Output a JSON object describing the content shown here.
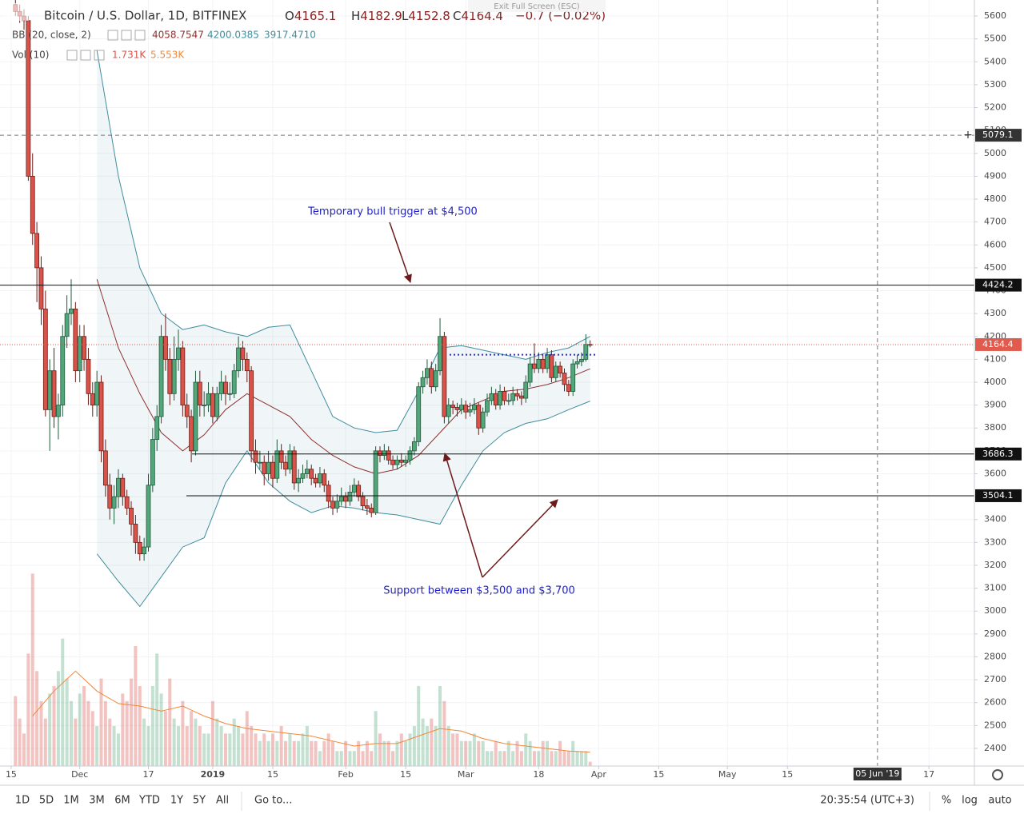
{
  "header": {
    "title": "Bitcoin / U.S. Dollar, 1D, BITFINEX",
    "ohlc": [
      {
        "label": "O",
        "value": 4165.1
      },
      {
        "label": "H",
        "value": 4182.9
      },
      {
        "label": "L",
        "value": 4152.8
      },
      {
        "label": "C",
        "value": 4164.4
      }
    ],
    "change": "−0.7 (−0.02%)",
    "indicators": [
      {
        "name": "BB (20, close, 2)",
        "values": [
          "4058.7547",
          "4200.0385",
          "3917.4710"
        ]
      },
      {
        "name": "Vol (10)",
        "values": [
          "1.731K",
          "5.553K"
        ]
      }
    ],
    "exit_fullscreen": "Exit Full Screen (ESC)"
  },
  "chart_data": {
    "type": "candlestick",
    "xlim": [
      -2.6,
      224.6
    ],
    "xticks": [
      {
        "value": 0,
        "label": "15"
      },
      {
        "value": 16,
        "label": "Dec"
      },
      {
        "value": 32,
        "label": "17"
      },
      {
        "value": 47,
        "label": "2019"
      },
      {
        "value": 61,
        "label": "15"
      },
      {
        "value": 78,
        "label": "Feb"
      },
      {
        "value": 92,
        "label": "15"
      },
      {
        "value": 106,
        "label": "Mar"
      },
      {
        "value": 123,
        "label": "18"
      },
      {
        "value": 137,
        "label": "Apr"
      },
      {
        "value": 151,
        "label": "15"
      },
      {
        "value": 167,
        "label": "May"
      },
      {
        "value": 181,
        "label": "15"
      },
      {
        "value": 214,
        "label": "17"
      }
    ],
    "ylim": [
      2323,
      5670
    ],
    "yticks": [
      2400,
      2500,
      2600,
      2700,
      2800,
      2900,
      3000,
      3100,
      3200,
      3300,
      3400,
      3500,
      3600,
      3700,
      3800,
      3900,
      4000,
      4100,
      4200,
      4300,
      4400,
      4500,
      4600,
      4700,
      4800,
      4900,
      5000,
      5100,
      5200,
      5300,
      5400,
      5500,
      5600
    ],
    "grid": true,
    "up_color": "#53a57a",
    "down_color": "#d9534a",
    "x": [
      1,
      2,
      3,
      4,
      5,
      6,
      7,
      8,
      9,
      10,
      11,
      12,
      13,
      14,
      15,
      16,
      17,
      18,
      19,
      20,
      21,
      22,
      23,
      24,
      25,
      26,
      27,
      28,
      29,
      30,
      31,
      32,
      33,
      34,
      35,
      36,
      37,
      38,
      39,
      40,
      41,
      42,
      43,
      44,
      45,
      46,
      47,
      48,
      49,
      50,
      51,
      52,
      53,
      54,
      55,
      56,
      57,
      58,
      59,
      60,
      61,
      62,
      63,
      64,
      65,
      66,
      67,
      68,
      69,
      70,
      71,
      72,
      73,
      74,
      75,
      76,
      77,
      78,
      79,
      80,
      81,
      82,
      83,
      84,
      85,
      86,
      87,
      88,
      89,
      90,
      91,
      92,
      93,
      94,
      95,
      96,
      97,
      98,
      99,
      100,
      101,
      102,
      103,
      104,
      105,
      106,
      107,
      108,
      109,
      110,
      111,
      112,
      113,
      114,
      115,
      116,
      117,
      118,
      119,
      120,
      121,
      122,
      123,
      124,
      125,
      126,
      127,
      128,
      129,
      130,
      131,
      132,
      133,
      134,
      135
    ],
    "candles": [
      [
        5650,
        5680,
        5600,
        5620
      ],
      [
        5620,
        5650,
        5570,
        5600
      ],
      [
        5600,
        5630,
        5540,
        5580
      ],
      [
        5580,
        5600,
        4880,
        4900
      ],
      [
        4900,
        5000,
        4600,
        4650
      ],
      [
        4650,
        4700,
        4350,
        4500
      ],
      [
        4500,
        4550,
        4250,
        4320
      ],
      [
        4320,
        4400,
        3850,
        3880
      ],
      [
        3880,
        4100,
        3700,
        4050
      ],
      [
        4050,
        4150,
        3800,
        3850
      ],
      [
        3850,
        3950,
        3750,
        3900
      ],
      [
        3900,
        4250,
        3850,
        4200
      ],
      [
        4200,
        4380,
        4150,
        4300
      ],
      [
        4300,
        4450,
        4250,
        4320
      ],
      [
        4320,
        4350,
        4000,
        4050
      ],
      [
        4050,
        4250,
        4000,
        4200
      ],
      [
        4200,
        4250,
        4050,
        4100
      ],
      [
        4100,
        4150,
        3900,
        3950
      ],
      [
        3950,
        4000,
        3850,
        3900
      ],
      [
        3900,
        4050,
        3850,
        4000
      ],
      [
        4000,
        4030,
        3650,
        3700
      ],
      [
        3700,
        3750,
        3500,
        3550
      ],
      [
        3550,
        3600,
        3400,
        3450
      ],
      [
        3450,
        3550,
        3380,
        3500
      ],
      [
        3500,
        3620,
        3450,
        3580
      ],
      [
        3580,
        3600,
        3460,
        3500
      ],
      [
        3500,
        3530,
        3420,
        3450
      ],
      [
        3450,
        3480,
        3330,
        3380
      ],
      [
        3380,
        3420,
        3250,
        3300
      ],
      [
        3300,
        3330,
        3220,
        3250
      ],
      [
        3250,
        3320,
        3220,
        3280
      ],
      [
        3280,
        3600,
        3260,
        3550
      ],
      [
        3550,
        3800,
        3520,
        3750
      ],
      [
        3750,
        3900,
        3700,
        3850
      ],
      [
        3850,
        4250,
        3820,
        4200
      ],
      [
        4200,
        4300,
        4050,
        4100
      ],
      [
        4100,
        4150,
        3900,
        3950
      ],
      [
        3950,
        4200,
        3920,
        4100
      ],
      [
        4100,
        4230,
        4050,
        4150
      ],
      [
        4150,
        4180,
        3850,
        3900
      ],
      [
        3900,
        3950,
        3800,
        3850
      ],
      [
        3850,
        3880,
        3650,
        3700
      ],
      [
        3700,
        4050,
        3680,
        4000
      ],
      [
        4000,
        4050,
        3850,
        3900
      ],
      [
        3900,
        3960,
        3850,
        3900
      ],
      [
        3900,
        4000,
        3870,
        3950
      ],
      [
        3950,
        3980,
        3820,
        3850
      ],
      [
        3850,
        3980,
        3830,
        3950
      ],
      [
        3950,
        4050,
        3920,
        4000
      ],
      [
        4000,
        4030,
        3900,
        3950
      ],
      [
        3950,
        4000,
        3920,
        3950
      ],
      [
        3950,
        4080,
        3930,
        4050
      ],
      [
        4050,
        4200,
        4020,
        4150
      ],
      [
        4150,
        4180,
        4050,
        4100
      ],
      [
        4100,
        4130,
        4000,
        4050
      ],
      [
        4050,
        4070,
        3650,
        3700
      ],
      [
        3700,
        3750,
        3600,
        3650
      ],
      [
        3650,
        3700,
        3620,
        3650
      ],
      [
        3650,
        3680,
        3550,
        3600
      ],
      [
        3600,
        3700,
        3570,
        3650
      ],
      [
        3650,
        3680,
        3540,
        3580
      ],
      [
        3580,
        3750,
        3560,
        3700
      ],
      [
        3700,
        3730,
        3620,
        3650
      ],
      [
        3650,
        3680,
        3590,
        3620
      ],
      [
        3620,
        3730,
        3600,
        3700
      ],
      [
        3700,
        3720,
        3530,
        3560
      ],
      [
        3560,
        3620,
        3520,
        3580
      ],
      [
        3580,
        3640,
        3560,
        3600
      ],
      [
        3600,
        3660,
        3580,
        3620
      ],
      [
        3620,
        3640,
        3550,
        3580
      ],
      [
        3580,
        3600,
        3540,
        3560
      ],
      [
        3560,
        3630,
        3540,
        3600
      ],
      [
        3600,
        3620,
        3520,
        3550
      ],
      [
        3550,
        3570,
        3450,
        3480
      ],
      [
        3480,
        3500,
        3420,
        3450
      ],
      [
        3450,
        3510,
        3430,
        3480
      ],
      [
        3480,
        3540,
        3460,
        3500
      ],
      [
        3500,
        3520,
        3450,
        3480
      ],
      [
        3480,
        3550,
        3460,
        3520
      ],
      [
        3520,
        3580,
        3500,
        3550
      ],
      [
        3550,
        3570,
        3480,
        3500
      ],
      [
        3500,
        3520,
        3440,
        3460
      ],
      [
        3460,
        3490,
        3420,
        3450
      ],
      [
        3450,
        3470,
        3410,
        3430
      ],
      [
        3430,
        3720,
        3420,
        3700
      ],
      [
        3700,
        3720,
        3650,
        3680
      ],
      [
        3680,
        3730,
        3660,
        3700
      ],
      [
        3700,
        3720,
        3640,
        3660
      ],
      [
        3660,
        3680,
        3620,
        3640
      ],
      [
        3640,
        3680,
        3620,
        3660
      ],
      [
        3660,
        3690,
        3630,
        3650
      ],
      [
        3650,
        3680,
        3630,
        3660
      ],
      [
        3660,
        3720,
        3640,
        3700
      ],
      [
        3700,
        3760,
        3680,
        3740
      ],
      [
        3740,
        4000,
        3720,
        3980
      ],
      [
        3980,
        4050,
        3950,
        4020
      ],
      [
        4020,
        4100,
        3990,
        4060
      ],
      [
        4060,
        4090,
        3950,
        3980
      ],
      [
        3980,
        4080,
        3960,
        4050
      ],
      [
        4050,
        4280,
        4030,
        4200
      ],
      [
        4200,
        4220,
        3820,
        3850
      ],
      [
        3850,
        3930,
        3820,
        3900
      ],
      [
        3900,
        3920,
        3860,
        3890
      ],
      [
        3890,
        3910,
        3850,
        3880
      ],
      [
        3880,
        3930,
        3860,
        3900
      ],
      [
        3900,
        3920,
        3840,
        3870
      ],
      [
        3870,
        3910,
        3850,
        3880
      ],
      [
        3880,
        3930,
        3860,
        3900
      ],
      [
        3900,
        3910,
        3770,
        3800
      ],
      [
        3800,
        3890,
        3780,
        3870
      ],
      [
        3870,
        3950,
        3850,
        3920
      ],
      [
        3920,
        3980,
        3900,
        3950
      ],
      [
        3950,
        3970,
        3880,
        3900
      ],
      [
        3900,
        3990,
        3880,
        3960
      ],
      [
        3960,
        3980,
        3900,
        3920
      ],
      [
        3920,
        3950,
        3900,
        3920
      ],
      [
        3920,
        3980,
        3900,
        3950
      ],
      [
        3950,
        3970,
        3920,
        3940
      ],
      [
        3940,
        3960,
        3900,
        3930
      ],
      [
        3930,
        4030,
        3910,
        4000
      ],
      [
        4000,
        4110,
        3980,
        4080
      ],
      [
        4080,
        4170,
        4040,
        4060
      ],
      [
        4060,
        4130,
        4040,
        4100
      ],
      [
        4100,
        4120,
        4040,
        4060
      ],
      [
        4060,
        4150,
        4040,
        4120
      ],
      [
        4120,
        4140,
        4000,
        4020
      ],
      [
        4020,
        4090,
        4000,
        4070
      ],
      [
        4070,
        4090,
        4020,
        4040
      ],
      [
        4040,
        4060,
        3960,
        3990
      ],
      [
        3990,
        4010,
        3940,
        3960
      ],
      [
        3960,
        4100,
        3940,
        4080
      ],
      [
        4080,
        4120,
        4060,
        4090
      ],
      [
        4090,
        4130,
        4070,
        4100
      ],
      [
        4100,
        4210,
        4090,
        4165
      ],
      [
        4165.1,
        4182.9,
        4152.8,
        4164.4
      ]
    ],
    "volume": [
      28,
      19,
      13,
      45,
      77,
      38,
      26,
      19,
      29,
      32,
      38,
      51,
      35,
      26,
      19,
      29,
      32,
      26,
      22,
      16,
      35,
      26,
      19,
      16,
      13,
      29,
      26,
      35,
      48,
      32,
      19,
      16,
      32,
      45,
      29,
      22,
      35,
      19,
      16,
      26,
      16,
      22,
      19,
      16,
      13,
      13,
      26,
      19,
      16,
      13,
      13,
      19,
      16,
      13,
      22,
      16,
      13,
      10,
      13,
      10,
      13,
      10,
      16,
      10,
      13,
      10,
      10,
      13,
      16,
      10,
      10,
      6,
      10,
      13,
      10,
      6,
      6,
      10,
      6,
      6,
      10,
      6,
      10,
      6,
      22,
      13,
      10,
      10,
      6,
      10,
      13,
      10,
      13,
      16,
      32,
      19,
      16,
      19,
      16,
      32,
      26,
      16,
      13,
      13,
      10,
      10,
      10,
      13,
      10,
      10,
      6,
      6,
      10,
      6,
      6,
      10,
      6,
      10,
      6,
      13,
      10,
      6,
      6,
      10,
      10,
      6,
      6,
      10,
      6,
      6,
      10,
      6,
      6,
      6,
      1.731
    ],
    "volume_ylim": [
      0,
      128
    ],
    "volume_ma": {
      "x": [
        5,
        10,
        15,
        20,
        25,
        30,
        35,
        40,
        45,
        50,
        55,
        60,
        65,
        70,
        75,
        80,
        85,
        90,
        95,
        100,
        105,
        110,
        115,
        120,
        125,
        130,
        135
      ],
      "values": [
        20,
        30,
        38,
        30,
        25,
        24,
        22,
        24,
        20,
        17,
        15,
        14,
        13,
        12,
        10,
        8,
        9,
        9,
        12,
        15,
        14,
        11,
        9,
        8,
        7,
        6,
        5.553
      ],
      "color": "#f0883a"
    },
    "bands": {
      "x": [
        20,
        25,
        30,
        35,
        40,
        45,
        50,
        55,
        60,
        65,
        70,
        75,
        80,
        85,
        90,
        95,
        100,
        105,
        110,
        115,
        120,
        125,
        130,
        135
      ],
      "upper": [
        5450,
        4900,
        4500,
        4300,
        4230,
        4250,
        4220,
        4200,
        4240,
        4250,
        4050,
        3850,
        3800,
        3780,
        3790,
        3960,
        4150,
        4160,
        4140,
        4120,
        4100,
        4130,
        4150,
        4200.0385
      ],
      "basis": [
        4450,
        4150,
        3950,
        3780,
        3700,
        3770,
        3880,
        3950,
        3900,
        3850,
        3750,
        3680,
        3630,
        3600,
        3620,
        3680,
        3780,
        3880,
        3920,
        3960,
        3970,
        3990,
        4020,
        4058.7547
      ],
      "lower": [
        3250,
        3130,
        3020,
        3150,
        3280,
        3320,
        3560,
        3700,
        3560,
        3480,
        3430,
        3460,
        3450,
        3430,
        3420,
        3400,
        3380,
        3550,
        3700,
        3780,
        3820,
        3840,
        3880,
        3917.471
      ],
      "band_color": "#3f8d9e",
      "basis_color": "#8e2f2f"
    },
    "levels": [
      4424.2,
      3686.3,
      3504.1
    ],
    "dotted_level": 4120,
    "last_price": 4164.4,
    "crosshair": {
      "x": 202,
      "x_label": "05 Jun '19",
      "price": 5079.1
    },
    "annotations": [
      "Temporary bull trigger at $4,500",
      "Support between $3,500 and $3,700"
    ]
  },
  "toolbar": {
    "ranges": [
      "1D",
      "5D",
      "1M",
      "3M",
      "6M",
      "YTD",
      "1Y",
      "5Y",
      "All"
    ],
    "goto": "Go to...",
    "time": "20:35:54 (UTC+3)",
    "percent": "%",
    "log": "log",
    "auto": "auto"
  }
}
